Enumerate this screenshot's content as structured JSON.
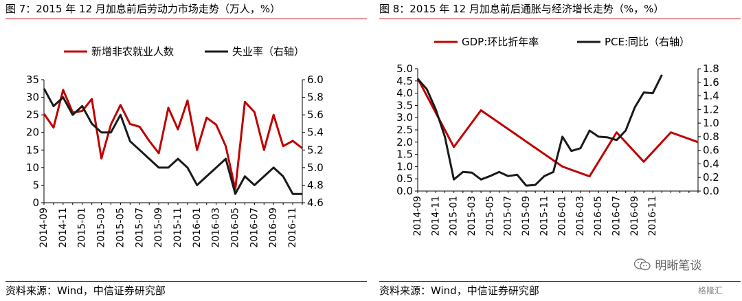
{
  "left": {
    "title": "图 7：2015 年 12 月加息前后劳动力市场走势（万人，%）",
    "source": "资料来源：Wind，中信证券研究部"
  },
  "right": {
    "title": "图 8：2015 年 12 月加息前后通胀与经济增长走势（%，%）",
    "source": "资料来源：Wind，中信证券研究部"
  },
  "watermark": {
    "text": "明晰笔谈",
    "icon": "wechat-icon"
  },
  "brand": {
    "text": "格隆汇"
  },
  "colors": {
    "red": "#c00000",
    "black": "#1a1a1a"
  },
  "chart_data": [
    {
      "type": "line",
      "title": "图 7：2015 年 12 月加息前后劳动力市场走势（万人，%）",
      "x_labels": [
        "2014-09",
        "2014-11",
        "2015-01",
        "2015-03",
        "2015-05",
        "2015-07",
        "2015-09",
        "2015-11",
        "2016-01",
        "2016-03",
        "2016-05",
        "2016-07",
        "2016-09",
        "2016-11"
      ],
      "left_axis": {
        "ylim": [
          0,
          35
        ],
        "ticks": [
          "0",
          "5",
          "10",
          "15",
          "20",
          "25",
          "30",
          "35"
        ]
      },
      "right_axis": {
        "ylim": [
          4.6,
          6.0
        ],
        "ticks": [
          "4.6",
          "4.8",
          "5.0",
          "5.2",
          "5.4",
          "5.6",
          "5.8",
          "6.0"
        ]
      },
      "legend": "top",
      "series": [
        {
          "name": "新增非农就业人数",
          "axis": "left",
          "color": "#c00000",
          "values": [
            25.3,
            21.4,
            32.1,
            25.7,
            26.1,
            29.5,
            12.6,
            22.3,
            27.8,
            22.4,
            21.6,
            17.6,
            14.1,
            27.0,
            20.9,
            29.1,
            15.0,
            24.2,
            22.2,
            16.1,
            3.8,
            28.7,
            25.8,
            15.0,
            25.0,
            16.1,
            17.6,
            15.5
          ]
        },
        {
          "name": "失业率（右轴）",
          "axis": "right",
          "color": "#1a1a1a",
          "values": [
            5.9,
            5.7,
            5.8,
            5.6,
            5.7,
            5.5,
            5.4,
            5.4,
            5.6,
            5.3,
            5.2,
            5.1,
            5.0,
            5.0,
            5.1,
            5.0,
            4.8,
            4.9,
            5.0,
            5.1,
            4.7,
            4.9,
            4.8,
            4.9,
            5.0,
            4.9,
            4.7,
            4.7
          ]
        }
      ]
    },
    {
      "type": "line",
      "title": "图 8：2015 年 12 月加息前后通胀与经济增长走势（%，%）",
      "x_labels": [
        "2014-09",
        "2014-11",
        "2015-01",
        "2015-03",
        "2015-05",
        "2015-07",
        "2015-09",
        "2015-11",
        "2016-01",
        "2016-03",
        "2016-05",
        "2016-07",
        "2016-09",
        "2016-11"
      ],
      "left_axis": {
        "ylim": [
          0,
          5.0
        ],
        "ticks": [
          "0.0",
          "0.5",
          "1.0",
          "1.5",
          "2.0",
          "2.5",
          "3.0",
          "3.5",
          "4.0",
          "4.5",
          "5.0"
        ]
      },
      "right_axis": {
        "ylim": [
          0,
          1.8
        ],
        "ticks": [
          "0.0",
          "0.2",
          "0.4",
          "0.6",
          "0.8",
          "1.0",
          "1.2",
          "1.4",
          "1.6",
          "1.8"
        ]
      },
      "legend": "top",
      "series": [
        {
          "name": "GDP:环比折年率",
          "axis": "left",
          "color": "#c00000",
          "points": [
            [
              0,
              4.6
            ],
            [
              4,
              1.8
            ],
            [
              7,
              3.3
            ],
            [
              16,
              1.0
            ],
            [
              19,
              0.6
            ],
            [
              22,
              2.4
            ],
            [
              25,
              1.2
            ],
            [
              28,
              2.4
            ],
            [
              31,
              2.0
            ]
          ]
        },
        {
          "name": "PCE:同比（右轴）",
          "axis": "right",
          "color": "#1a1a1a",
          "values": [
            1.65,
            1.5,
            1.2,
            0.8,
            0.17,
            0.28,
            0.27,
            0.17,
            0.22,
            0.28,
            0.22,
            0.24,
            0.08,
            0.09,
            0.22,
            0.28,
            0.8,
            0.59,
            0.63,
            0.89,
            0.8,
            0.79,
            0.75,
            0.89,
            1.23,
            1.45,
            1.44,
            1.71
          ]
        }
      ]
    }
  ]
}
